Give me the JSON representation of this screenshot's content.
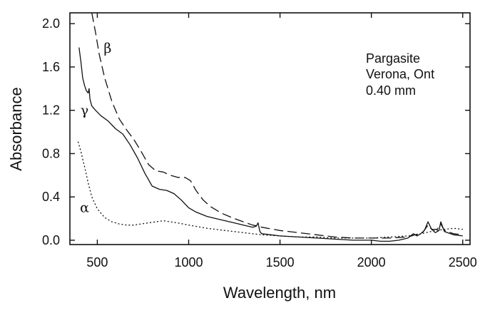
{
  "chart_data": {
    "type": "line",
    "xlabel": "Wavelength, nm",
    "ylabel": "Absorbance",
    "xlim": [
      350,
      2540
    ],
    "ylim": [
      -0.04,
      2.1
    ],
    "xticks": [
      500,
      1000,
      1500,
      2000,
      2500
    ],
    "xtick_labels": [
      "500",
      "1000",
      "1500",
      "2000",
      "2500"
    ],
    "yticks": [
      0.0,
      0.4,
      0.8,
      1.2,
      1.6,
      2.0
    ],
    "ytick_labels": [
      "0.0",
      "0.4",
      "0.8",
      "1.2",
      "1.6",
      "2.0"
    ],
    "grid": false,
    "annotation_lines": [
      "Pargasite",
      "Verona, Ont",
      "0.40 mm"
    ],
    "series": [
      {
        "name": "β",
        "style": "dashed",
        "color": "#111111",
        "label_at": [
          535,
          1.73
        ],
        "x": [
          470,
          490,
          510,
          540,
          580,
          620,
          660,
          700,
          740,
          780,
          820,
          860,
          900,
          940,
          980,
          1010,
          1040,
          1080,
          1120,
          1180,
          1250,
          1300,
          1350,
          1380,
          1400,
          1500,
          1600,
          1700,
          1800,
          1900,
          2000,
          2100,
          2200,
          2240,
          2280,
          2310,
          2330,
          2360,
          2380,
          2400,
          2450,
          2500
        ],
        "y": [
          2.1,
          1.92,
          1.72,
          1.5,
          1.28,
          1.12,
          1.02,
          0.93,
          0.82,
          0.7,
          0.64,
          0.63,
          0.6,
          0.58,
          0.58,
          0.55,
          0.46,
          0.37,
          0.31,
          0.25,
          0.2,
          0.17,
          0.14,
          0.13,
          0.12,
          0.09,
          0.07,
          0.05,
          0.03,
          0.02,
          0.02,
          0.02,
          0.03,
          0.05,
          0.07,
          0.14,
          0.1,
          0.1,
          0.15,
          0.09,
          0.06,
          0.05
        ]
      },
      {
        "name": "γ",
        "style": "solid",
        "color": "#111111",
        "label_at": [
          408,
          1.16
        ],
        "x": [
          400,
          410,
          420,
          430,
          440,
          450,
          455,
          460,
          470,
          490,
          520,
          560,
          600,
          640,
          680,
          720,
          760,
          800,
          840,
          880,
          920,
          960,
          1000,
          1040,
          1100,
          1150,
          1200,
          1250,
          1300,
          1350,
          1370,
          1380,
          1390,
          1400,
          1450,
          1500,
          1600,
          1700,
          1800,
          1900,
          2000,
          2050,
          2100,
          2150,
          2200,
          2230,
          2250,
          2270,
          2290,
          2310,
          2330,
          2350,
          2370,
          2380,
          2400,
          2450,
          2500
        ],
        "y": [
          1.78,
          1.65,
          1.5,
          1.43,
          1.38,
          1.36,
          1.4,
          1.3,
          1.24,
          1.2,
          1.15,
          1.1,
          1.03,
          0.98,
          0.88,
          0.76,
          0.62,
          0.5,
          0.47,
          0.46,
          0.43,
          0.37,
          0.3,
          0.26,
          0.22,
          0.2,
          0.18,
          0.16,
          0.14,
          0.12,
          0.13,
          0.16,
          0.08,
          0.06,
          0.05,
          0.04,
          0.03,
          0.02,
          0.01,
          0.0,
          0.0,
          -0.01,
          -0.01,
          0.0,
          0.02,
          0.06,
          0.04,
          0.06,
          0.09,
          0.17,
          0.1,
          0.07,
          0.09,
          0.17,
          0.08,
          0.05,
          0.04
        ]
      },
      {
        "name": "α",
        "style": "dotted",
        "color": "#111111",
        "label_at": [
          405,
          0.26
        ],
        "x": [
          395,
          410,
          430,
          450,
          470,
          500,
          540,
          580,
          620,
          660,
          700,
          740,
          780,
          820,
          860,
          900,
          940,
          1000,
          1100,
          1200,
          1300,
          1400,
          1500,
          1600,
          1700,
          1800,
          1900,
          2000,
          2100,
          2200,
          2250,
          2300,
          2350,
          2400,
          2450,
          2500
        ],
        "y": [
          0.91,
          0.82,
          0.68,
          0.53,
          0.4,
          0.29,
          0.21,
          0.17,
          0.15,
          0.14,
          0.14,
          0.15,
          0.16,
          0.17,
          0.18,
          0.17,
          0.16,
          0.14,
          0.11,
          0.09,
          0.07,
          0.05,
          0.04,
          0.03,
          0.03,
          0.02,
          0.02,
          0.02,
          0.03,
          0.04,
          0.05,
          0.07,
          0.09,
          0.1,
          0.11,
          0.1
        ]
      }
    ]
  }
}
